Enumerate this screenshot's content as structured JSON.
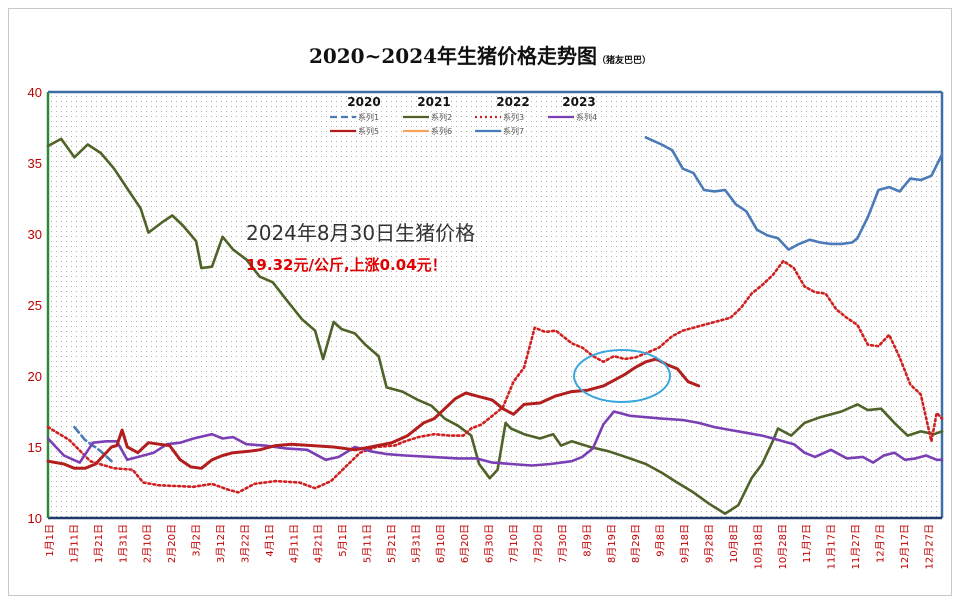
{
  "chart_data": {
    "type": "line",
    "title": "2020~2024年生猪价格走势图",
    "title_note": "（猪友巴巴）",
    "ylim": [
      10,
      40
    ],
    "yticks": [
      "10",
      "15",
      "20",
      "25",
      "30",
      "35",
      "40"
    ],
    "x_labels": [
      "1月1日",
      "1月11日",
      "1月21日",
      "1月31日",
      "2月10日",
      "2月20日",
      "3月2日",
      "3月12日",
      "3月22日",
      "4月1日",
      "4月11日",
      "4月21日",
      "5月1日",
      "5月11日",
      "5月21日",
      "5月31日",
      "6月10日",
      "6月20日",
      "6月30日",
      "7月10日",
      "7月20日",
      "7月30日",
      "8月9日",
      "8月19日",
      "8月29日",
      "9月8日",
      "9月18日",
      "9月28日",
      "10月8日",
      "10月18日",
      "10月28日",
      "11月7日",
      "11月17日",
      "11月27日",
      "12月7日",
      "12月17日",
      "12月27日"
    ],
    "legend_years": [
      "2020",
      "2021",
      "2022",
      "2023"
    ],
    "series": [
      {
        "name": "系列1",
        "color": "#4a7ab8",
        "dash": "dash",
        "points": [
          [
            10,
            16.4
          ],
          [
            14,
            15.5
          ],
          [
            20,
            14.7
          ],
          [
            24,
            14.0
          ]
        ]
      },
      {
        "name": "系列2",
        "color": "#4f6228",
        "dash": "solid",
        "points": [
          [
            0,
            36.2
          ],
          [
            5,
            36.7
          ],
          [
            10,
            35.4
          ],
          [
            15,
            36.3
          ],
          [
            20,
            35.7
          ],
          [
            25,
            34.6
          ],
          [
            30,
            33.2
          ],
          [
            35,
            31.8
          ],
          [
            38,
            30.1
          ],
          [
            43,
            30.8
          ],
          [
            47,
            31.3
          ],
          [
            51,
            30.6
          ],
          [
            56,
            29.5
          ],
          [
            58,
            27.6
          ],
          [
            62,
            27.7
          ],
          [
            66,
            29.8
          ],
          [
            70,
            28.9
          ],
          [
            75,
            28.2
          ],
          [
            80,
            27.0
          ],
          [
            85,
            26.6
          ],
          [
            90,
            25.4
          ],
          [
            96,
            24.0
          ],
          [
            101,
            23.2
          ],
          [
            104,
            21.2
          ],
          [
            108,
            23.8
          ],
          [
            111,
            23.3
          ],
          [
            116,
            23.0
          ],
          [
            120,
            22.2
          ],
          [
            125,
            21.4
          ],
          [
            128,
            19.2
          ],
          [
            134,
            18.9
          ],
          [
            140,
            18.3
          ],
          [
            145,
            17.9
          ],
          [
            150,
            17.0
          ],
          [
            155,
            16.5
          ],
          [
            160,
            15.8
          ],
          [
            163,
            13.8
          ],
          [
            167,
            12.8
          ],
          [
            170,
            13.4
          ],
          [
            173,
            16.7
          ],
          [
            175,
            16.3
          ],
          [
            180,
            15.9
          ],
          [
            186,
            15.6
          ],
          [
            191,
            15.9
          ],
          [
            194,
            15.1
          ],
          [
            198,
            15.4
          ],
          [
            205,
            15.0
          ],
          [
            212,
            14.7
          ],
          [
            220,
            14.2
          ],
          [
            226,
            13.8
          ],
          [
            232,
            13.2
          ],
          [
            237,
            12.6
          ],
          [
            244,
            11.8
          ],
          [
            250,
            11.0
          ],
          [
            256,
            10.3
          ],
          [
            261,
            10.9
          ],
          [
            266,
            12.8
          ],
          [
            270,
            13.8
          ],
          [
            274,
            15.4
          ],
          [
            276,
            16.3
          ],
          [
            281,
            15.8
          ],
          [
            286,
            16.7
          ],
          [
            292,
            17.1
          ],
          [
            300,
            17.5
          ],
          [
            306,
            18.0
          ],
          [
            310,
            17.6
          ],
          [
            315,
            17.7
          ],
          [
            320,
            16.7
          ],
          [
            325,
            15.8
          ],
          [
            330,
            16.1
          ],
          [
            335,
            15.9
          ],
          [
            338,
            16.1
          ]
        ]
      },
      {
        "name": "系列3",
        "color": "#d02020",
        "dash": "dot",
        "points": [
          [
            0,
            16.4
          ],
          [
            8,
            15.5
          ],
          [
            16,
            14.0
          ],
          [
            25,
            13.5
          ],
          [
            32,
            13.4
          ],
          [
            36,
            12.5
          ],
          [
            42,
            12.3
          ],
          [
            55,
            12.2
          ],
          [
            62,
            12.4
          ],
          [
            68,
            12.0
          ],
          [
            72,
            11.8
          ],
          [
            78,
            12.4
          ],
          [
            86,
            12.6
          ],
          [
            95,
            12.5
          ],
          [
            101,
            12.1
          ],
          [
            107,
            12.6
          ],
          [
            113,
            13.7
          ],
          [
            118,
            14.6
          ],
          [
            124,
            15.0
          ],
          [
            131,
            15.1
          ],
          [
            135,
            15.4
          ],
          [
            140,
            15.7
          ],
          [
            146,
            15.9
          ],
          [
            152,
            15.8
          ],
          [
            157,
            15.8
          ],
          [
            160,
            16.3
          ],
          [
            164,
            16.6
          ],
          [
            168,
            17.2
          ],
          [
            172,
            17.8
          ],
          [
            176,
            19.6
          ],
          [
            180,
            20.6
          ],
          [
            184,
            23.4
          ],
          [
            188,
            23.1
          ],
          [
            192,
            23.2
          ],
          [
            198,
            22.3
          ],
          [
            202,
            22.0
          ],
          [
            206,
            21.4
          ],
          [
            210,
            21.0
          ],
          [
            214,
            21.4
          ],
          [
            218,
            21.2
          ],
          [
            222,
            21.3
          ],
          [
            226,
            21.6
          ],
          [
            231,
            22.0
          ],
          [
            236,
            22.8
          ],
          [
            240,
            23.2
          ],
          [
            246,
            23.5
          ],
          [
            252,
            23.8
          ],
          [
            258,
            24.1
          ],
          [
            262,
            24.8
          ],
          [
            266,
            25.8
          ],
          [
            270,
            26.4
          ],
          [
            274,
            27.1
          ],
          [
            278,
            28.1
          ],
          [
            282,
            27.6
          ],
          [
            286,
            26.3
          ],
          [
            290,
            25.9
          ],
          [
            294,
            25.8
          ],
          [
            298,
            24.7
          ],
          [
            302,
            24.1
          ],
          [
            306,
            23.6
          ],
          [
            310,
            22.2
          ],
          [
            314,
            22.1
          ],
          [
            318,
            22.9
          ],
          [
            322,
            21.3
          ],
          [
            326,
            19.4
          ],
          [
            330,
            18.7
          ],
          [
            334,
            15.4
          ],
          [
            336,
            17.4
          ],
          [
            338,
            17.0
          ]
        ]
      },
      {
        "name": "系列4",
        "color": "#7b3fb5",
        "dash": "solid",
        "points": [
          [
            0,
            15.6
          ],
          [
            6,
            14.4
          ],
          [
            12,
            13.9
          ],
          [
            17,
            15.3
          ],
          [
            22,
            15.4
          ],
          [
            26,
            15.4
          ],
          [
            30,
            14.1
          ],
          [
            40,
            14.6
          ],
          [
            45,
            15.2
          ],
          [
            50,
            15.3
          ],
          [
            55,
            15.6
          ],
          [
            62,
            15.9
          ],
          [
            66,
            15.6
          ],
          [
            70,
            15.7
          ],
          [
            75,
            15.2
          ],
          [
            82,
            15.1
          ],
          [
            90,
            14.9
          ],
          [
            98,
            14.8
          ],
          [
            105,
            14.1
          ],
          [
            110,
            14.3
          ],
          [
            116,
            15.0
          ],
          [
            122,
            14.7
          ],
          [
            128,
            14.5
          ],
          [
            135,
            14.4
          ],
          [
            145,
            14.3
          ],
          [
            155,
            14.2
          ],
          [
            162,
            14.2
          ],
          [
            168,
            13.9
          ],
          [
            175,
            13.8
          ],
          [
            183,
            13.7
          ],
          [
            190,
            13.8
          ],
          [
            198,
            14.0
          ],
          [
            202,
            14.3
          ],
          [
            206,
            14.9
          ],
          [
            210,
            16.6
          ],
          [
            214,
            17.5
          ],
          [
            220,
            17.2
          ],
          [
            226,
            17.1
          ],
          [
            232,
            17.0
          ],
          [
            240,
            16.9
          ],
          [
            246,
            16.7
          ],
          [
            252,
            16.4
          ],
          [
            258,
            16.2
          ],
          [
            264,
            16.0
          ],
          [
            270,
            15.8
          ],
          [
            276,
            15.5
          ],
          [
            282,
            15.2
          ],
          [
            286,
            14.6
          ],
          [
            290,
            14.3
          ],
          [
            296,
            14.8
          ],
          [
            302,
            14.2
          ],
          [
            308,
            14.3
          ],
          [
            312,
            13.9
          ],
          [
            316,
            14.4
          ],
          [
            320,
            14.6
          ],
          [
            324,
            14.1
          ],
          [
            328,
            14.2
          ],
          [
            332,
            14.4
          ],
          [
            336,
            14.1
          ],
          [
            338,
            14.1
          ]
        ]
      },
      {
        "name": "系列5",
        "color": "#b21e1e",
        "dash": "solid",
        "points": [
          [
            0,
            14.0
          ],
          [
            6,
            13.8
          ],
          [
            10,
            13.5
          ],
          [
            14,
            13.5
          ],
          [
            18,
            13.8
          ],
          [
            24,
            15.0
          ],
          [
            26,
            15.1
          ],
          [
            28,
            16.2
          ],
          [
            30,
            15.0
          ],
          [
            34,
            14.6
          ],
          [
            38,
            15.3
          ],
          [
            42,
            15.2
          ],
          [
            46,
            15.1
          ],
          [
            50,
            14.1
          ],
          [
            54,
            13.6
          ],
          [
            58,
            13.5
          ],
          [
            62,
            14.1
          ],
          [
            66,
            14.4
          ],
          [
            70,
            14.6
          ],
          [
            76,
            14.7
          ],
          [
            80,
            14.8
          ],
          [
            86,
            15.1
          ],
          [
            92,
            15.2
          ],
          [
            100,
            15.1
          ],
          [
            108,
            15.0
          ],
          [
            116,
            14.8
          ],
          [
            122,
            15.0
          ],
          [
            130,
            15.3
          ],
          [
            136,
            15.8
          ],
          [
            142,
            16.7
          ],
          [
            146,
            17.0
          ],
          [
            150,
            17.7
          ],
          [
            154,
            18.4
          ],
          [
            158,
            18.8
          ],
          [
            162,
            18.6
          ],
          [
            168,
            18.3
          ],
          [
            172,
            17.7
          ],
          [
            176,
            17.3
          ],
          [
            180,
            18.0
          ],
          [
            186,
            18.1
          ],
          [
            192,
            18.6
          ],
          [
            198,
            18.9
          ],
          [
            204,
            19.0
          ],
          [
            210,
            19.3
          ],
          [
            214,
            19.7
          ],
          [
            218,
            20.1
          ],
          [
            222,
            20.6
          ],
          [
            226,
            21.0
          ],
          [
            230,
            21.2
          ],
          [
            234,
            20.8
          ],
          [
            238,
            20.5
          ],
          [
            242,
            19.6
          ],
          [
            246,
            19.3
          ]
        ]
      },
      {
        "name": "系列6",
        "color": "#f4a460",
        "dash": "solid",
        "points": []
      },
      {
        "name": "系列7",
        "color": "#4a7ab8",
        "dash": "solid",
        "points": [
          [
            226,
            36.8
          ],
          [
            232,
            36.3
          ],
          [
            236,
            35.9
          ],
          [
            240,
            34.6
          ],
          [
            244,
            34.3
          ],
          [
            248,
            33.1
          ],
          [
            252,
            33.0
          ],
          [
            256,
            33.1
          ],
          [
            260,
            32.1
          ],
          [
            264,
            31.6
          ],
          [
            268,
            30.3
          ],
          [
            272,
            29.9
          ],
          [
            276,
            29.7
          ],
          [
            280,
            28.9
          ],
          [
            284,
            29.3
          ],
          [
            288,
            29.6
          ],
          [
            292,
            29.4
          ],
          [
            296,
            29.3
          ],
          [
            300,
            29.3
          ],
          [
            304,
            29.4
          ],
          [
            306,
            29.7
          ],
          [
            310,
            31.2
          ],
          [
            314,
            33.1
          ],
          [
            318,
            33.3
          ],
          [
            322,
            33.0
          ],
          [
            326,
            33.9
          ],
          [
            330,
            33.8
          ],
          [
            334,
            34.1
          ],
          [
            338,
            35.6
          ]
        ]
      }
    ],
    "annotation_line1": "2024年8月30日生猪价格",
    "annotation_line2": "19.32元/公斤,上涨0.04元！"
  }
}
